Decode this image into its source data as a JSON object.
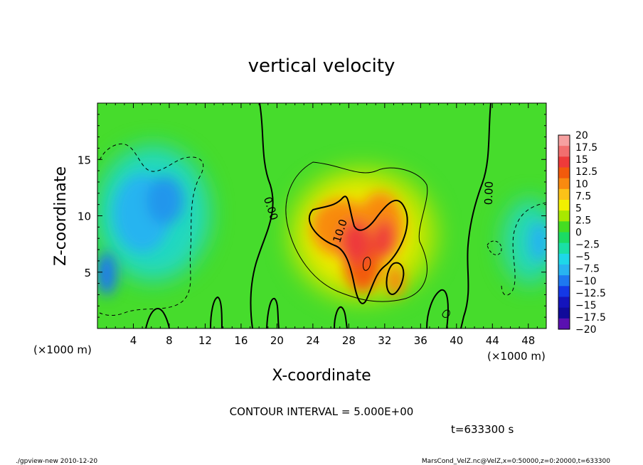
{
  "chart_data": {
    "type": "heatmap",
    "title": "vertical velocity",
    "xlabel": "X-coordinate",
    "ylabel": "Z-coordinate",
    "x_unit": "(×1000 m)",
    "y_unit": "(×1000 m)",
    "xlim": [
      0,
      50
    ],
    "ylim": [
      0,
      20
    ],
    "x_ticks": [
      4,
      8,
      12,
      16,
      20,
      24,
      28,
      32,
      36,
      40,
      44,
      48
    ],
    "y_ticks": [
      5,
      10,
      15
    ],
    "contour_interval_text": "CONTOUR INTERVAL = 5.000E+00",
    "time_text": "t=633300 s",
    "contour_labels": [
      "0.00",
      "10.0",
      "0.00"
    ],
    "colorbar": {
      "levels": [
        "20",
        "17.5",
        "15",
        "12.5",
        "10",
        "7.5",
        "5",
        "2.5",
        "0",
        "−2.5",
        "−5",
        "−7.5",
        "−10",
        "−12.5",
        "−15",
        "−17.5",
        "−20"
      ],
      "colors": [
        "#f6a0a0",
        "#f26e6e",
        "#ee3a3a",
        "#f25a0c",
        "#f88a10",
        "#fbc218",
        "#f2f000",
        "#a8e800",
        "#44dd22",
        "#1bdc64",
        "#1ae0a6",
        "#1ed8e8",
        "#28b4f0",
        "#1e78f0",
        "#1438e6",
        "#1414bc",
        "#100a9a",
        "#5a10b0"
      ]
    },
    "features": [
      {
        "kind": "updraft",
        "x": 30,
        "z": 8,
        "peak": 15
      },
      {
        "kind": "downdraft",
        "x": 6,
        "z": 11,
        "min": -7.5
      },
      {
        "kind": "downdraft",
        "x": 48,
        "z": 8,
        "min": -7.5
      }
    ]
  },
  "footer": {
    "left": "./gpview-new  2010-12-20",
    "right": "MarsCond_VelZ.nc@VelZ,x=0:50000,z=0:20000,t=633300"
  }
}
